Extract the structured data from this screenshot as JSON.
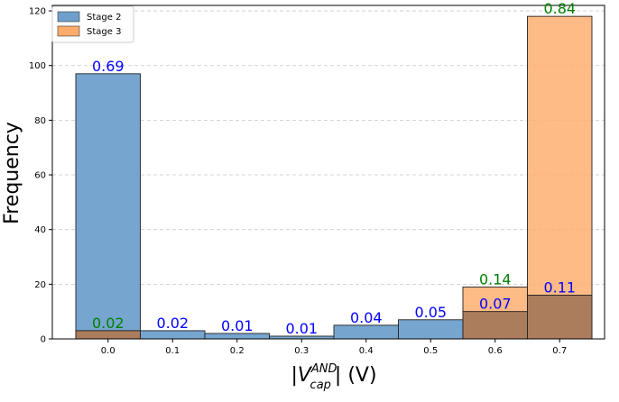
{
  "chart_data": {
    "type": "bar",
    "categories": [
      "0.0",
      "0.1",
      "0.2",
      "0.3",
      "0.4",
      "0.5",
      "0.6",
      "0.7"
    ],
    "series": [
      {
        "name": "Stage 2",
        "color": "#6fa0cc",
        "label_color": "#0000ff",
        "values": [
          97,
          3,
          2,
          1,
          5,
          7,
          10,
          16
        ],
        "labels": [
          "0.69",
          "0.02",
          "0.01",
          "0.01",
          "0.04",
          "0.05",
          "0.07",
          "0.11"
        ]
      },
      {
        "name": "Stage 3",
        "color": "#ffac6b",
        "label_color": "#008000",
        "values": [
          3,
          0,
          0,
          0,
          0,
          0,
          19,
          118
        ],
        "labels": [
          "0.02",
          "",
          "",
          "",
          "",
          "",
          "0.14",
          "0.84"
        ]
      }
    ],
    "ylabel": "Frequency",
    "xlabel": {
      "prefix": "|V",
      "sup": "AND",
      "sub": "cap",
      "suffix": "| (V)"
    },
    "ylim": [
      0,
      122
    ],
    "yticks": [
      0,
      20,
      40,
      60,
      80,
      100,
      120
    ],
    "grid": "y-dashed",
    "legend_position": "top-left",
    "overlay": "overlapping bars (Stage 3 drawn over Stage 2)"
  }
}
